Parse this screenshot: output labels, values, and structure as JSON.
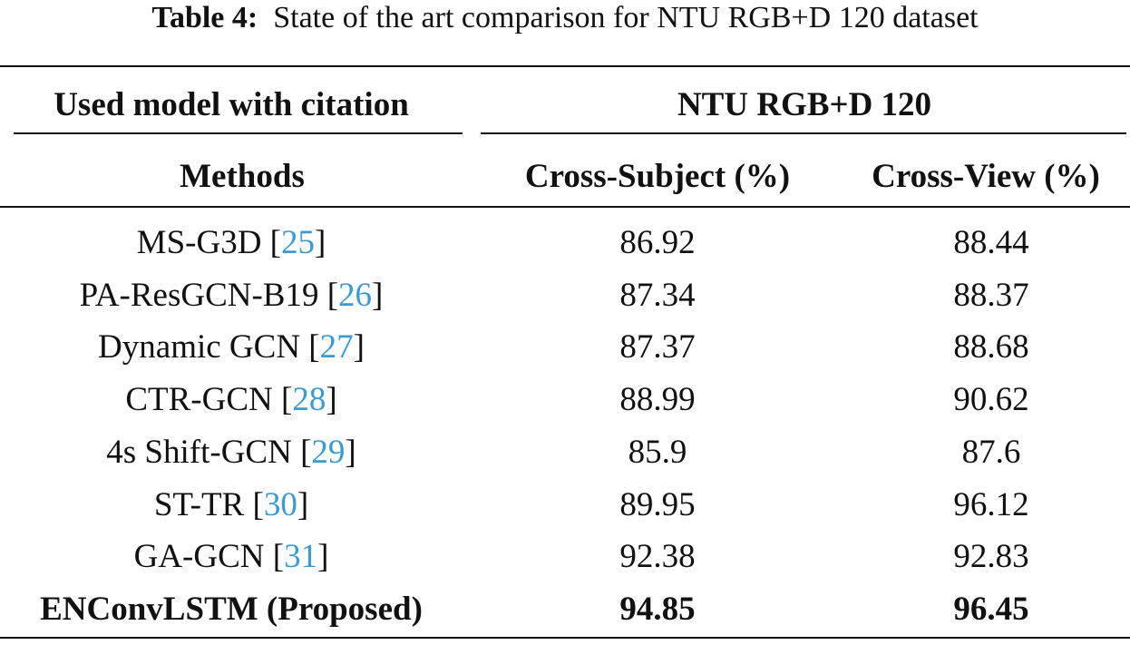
{
  "caption": {
    "label": "Table 4:",
    "text": "State of the art comparison for NTU RGB+D 120 dataset"
  },
  "header": {
    "group_left": "Used model with citation",
    "group_right": "NTU RGB+D 120",
    "columns": [
      "Methods",
      "Cross-Subject (%)",
      "Cross-View (%)"
    ]
  },
  "brackets": [
    "[",
    "]"
  ],
  "rows": [
    {
      "method": "MS-G3D",
      "citation": "25",
      "cross_subject": 86.92,
      "cross_view": 88.44
    },
    {
      "method": "PA-ResGCN-B19",
      "citation": "26",
      "cross_subject": 87.34,
      "cross_view": 88.37
    },
    {
      "method": "Dynamic GCN",
      "citation": "27",
      "cross_subject": 87.37,
      "cross_view": 88.68
    },
    {
      "method": "CTR-GCN",
      "citation": "28",
      "cross_subject": 88.99,
      "cross_view": 90.62
    },
    {
      "method": "4s Shift-GCN",
      "citation": "29",
      "cross_subject": 85.9,
      "cross_view": 87.6
    },
    {
      "method": "ST-TR",
      "citation": "30",
      "cross_subject": 89.95,
      "cross_view": 96.12
    },
    {
      "method": "GA-GCN",
      "citation": "31",
      "cross_subject": 92.38,
      "cross_view": 92.83
    },
    {
      "method": "ENConvLSTM (Proposed)",
      "cross_subject": 94.85,
      "cross_view": 96.45
    }
  ]
}
